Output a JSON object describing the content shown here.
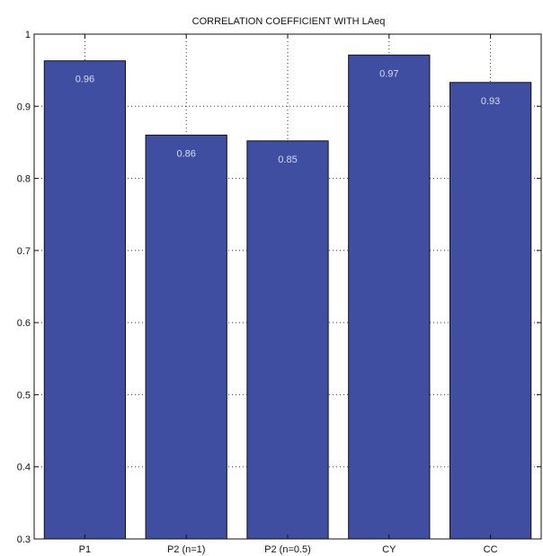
{
  "chart_data": {
    "type": "bar",
    "title": "CORRELATION COEFFICIENT WITH LAeq",
    "xlabel": "",
    "ylabel": "",
    "categories": [
      "P1",
      "P2 (n=1)",
      "P2 (n=0.5)",
      "CY",
      "CC"
    ],
    "values": [
      0.963,
      0.86,
      0.852,
      0.971,
      0.933
    ],
    "data_labels": [
      "0.96",
      "0.86",
      "0.85",
      "0.97",
      "0.93"
    ],
    "ylim": [
      0.3,
      1
    ],
    "yticks": [
      0.3,
      0.4,
      0.5,
      0.6,
      0.7,
      0.8,
      0.9,
      1
    ],
    "ytick_labels": [
      "0.3",
      "0.4",
      "0.5",
      "0.6",
      "0.7",
      "0.8",
      "0.9",
      "1"
    ],
    "grid": true,
    "bar_color": "#3f4ea0",
    "bar_edge_color": "#111111",
    "data_label_color": "#d8dcf2"
  }
}
